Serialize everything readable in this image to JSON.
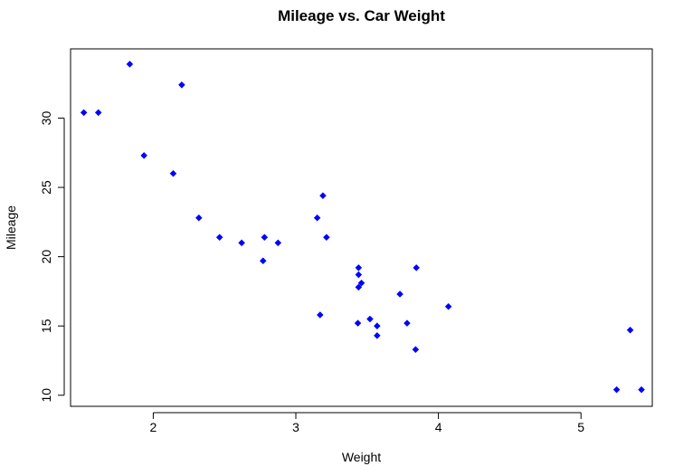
{
  "chart_data": {
    "type": "scatter",
    "title": "Mileage vs. Car Weight",
    "xlabel": "Weight",
    "ylabel": "Mileage",
    "xlim": [
      1.42,
      5.5
    ],
    "ylim": [
      9.2,
      35.0
    ],
    "xticks": [
      2,
      3,
      4,
      5
    ],
    "yticks": [
      10,
      15,
      20,
      25,
      30
    ],
    "grid": false,
    "marker_color": "#0000FF",
    "points": [
      {
        "x": 1.513,
        "y": 30.4
      },
      {
        "x": 1.615,
        "y": 30.4
      },
      {
        "x": 1.835,
        "y": 33.9
      },
      {
        "x": 1.935,
        "y": 27.3
      },
      {
        "x": 2.14,
        "y": 26.0
      },
      {
        "x": 2.2,
        "y": 32.4
      },
      {
        "x": 2.32,
        "y": 22.8
      },
      {
        "x": 2.465,
        "y": 21.4
      },
      {
        "x": 2.62,
        "y": 21.0
      },
      {
        "x": 2.77,
        "y": 19.7
      },
      {
        "x": 2.78,
        "y": 21.4
      },
      {
        "x": 2.875,
        "y": 21.0
      },
      {
        "x": 3.15,
        "y": 22.8
      },
      {
        "x": 3.17,
        "y": 15.8
      },
      {
        "x": 3.19,
        "y": 24.4
      },
      {
        "x": 3.215,
        "y": 21.4
      },
      {
        "x": 3.435,
        "y": 15.2
      },
      {
        "x": 3.44,
        "y": 18.7
      },
      {
        "x": 3.44,
        "y": 19.2
      },
      {
        "x": 3.44,
        "y": 17.8
      },
      {
        "x": 3.46,
        "y": 18.1
      },
      {
        "x": 3.52,
        "y": 15.5
      },
      {
        "x": 3.57,
        "y": 14.3
      },
      {
        "x": 3.57,
        "y": 15.0
      },
      {
        "x": 3.73,
        "y": 17.3
      },
      {
        "x": 3.78,
        "y": 15.2
      },
      {
        "x": 3.84,
        "y": 13.3
      },
      {
        "x": 3.845,
        "y": 19.2
      },
      {
        "x": 4.07,
        "y": 16.4
      },
      {
        "x": 5.25,
        "y": 10.4
      },
      {
        "x": 5.345,
        "y": 14.7
      },
      {
        "x": 5.424,
        "y": 10.4
      }
    ]
  }
}
